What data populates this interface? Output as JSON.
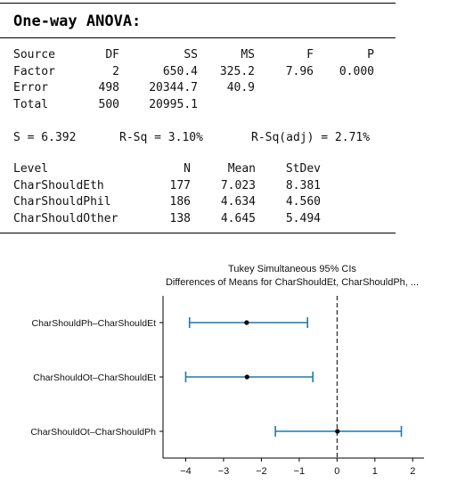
{
  "title": "One-way ANOVA:",
  "anova_table": {
    "headers": [
      "Source",
      "DF",
      "SS",
      "MS",
      "F",
      "P"
    ],
    "rows": [
      [
        "Factor",
        "2",
        "650.4",
        "325.2",
        "7.96",
        "0.000"
      ],
      [
        "Error",
        "498",
        "20344.7",
        "40.9",
        "",
        ""
      ],
      [
        "Total",
        "500",
        "20995.1",
        "",
        "",
        ""
      ]
    ]
  },
  "fit_stats": {
    "s": "S = 6.392",
    "rsq": "R-Sq = 3.10%",
    "rsq_adj": "R-Sq(adj) = 2.71%"
  },
  "level_table": {
    "headers": [
      "Level",
      "N",
      "Mean",
      "StDev"
    ],
    "rows": [
      [
        "CharShouldEth",
        "177",
        "7.023",
        "8.381"
      ],
      [
        "CharShouldPhil",
        "186",
        "4.634",
        "4.560"
      ],
      [
        "CharShouldOther",
        "138",
        "4.645",
        "5.494"
      ]
    ]
  },
  "chart_data": {
    "type": "interval",
    "title": "Tukey Simultaneous 95% CIs",
    "subtitle": "Differences of Means for CharShouldEt, CharShouldPh, ...",
    "xlabel": "",
    "ylabel": "",
    "xlim": [
      -4.6,
      2.3
    ],
    "xticks": [
      "-4",
      "-3",
      "-2",
      "-1",
      "0",
      "1",
      "2"
    ],
    "reference_line": 0,
    "color": "#1f78a8",
    "intervals": [
      {
        "label": "CharShouldPh–CharShouldEt",
        "lower": -3.9,
        "estimate": -2.39,
        "upper": -0.78
      },
      {
        "label": "CharShouldOt–CharShouldEt",
        "lower": -4.0,
        "estimate": -2.38,
        "upper": -0.64
      },
      {
        "label": "CharShouldOt–CharShouldPh",
        "lower": -1.63,
        "estimate": 0.01,
        "upper": 1.7
      }
    ]
  }
}
